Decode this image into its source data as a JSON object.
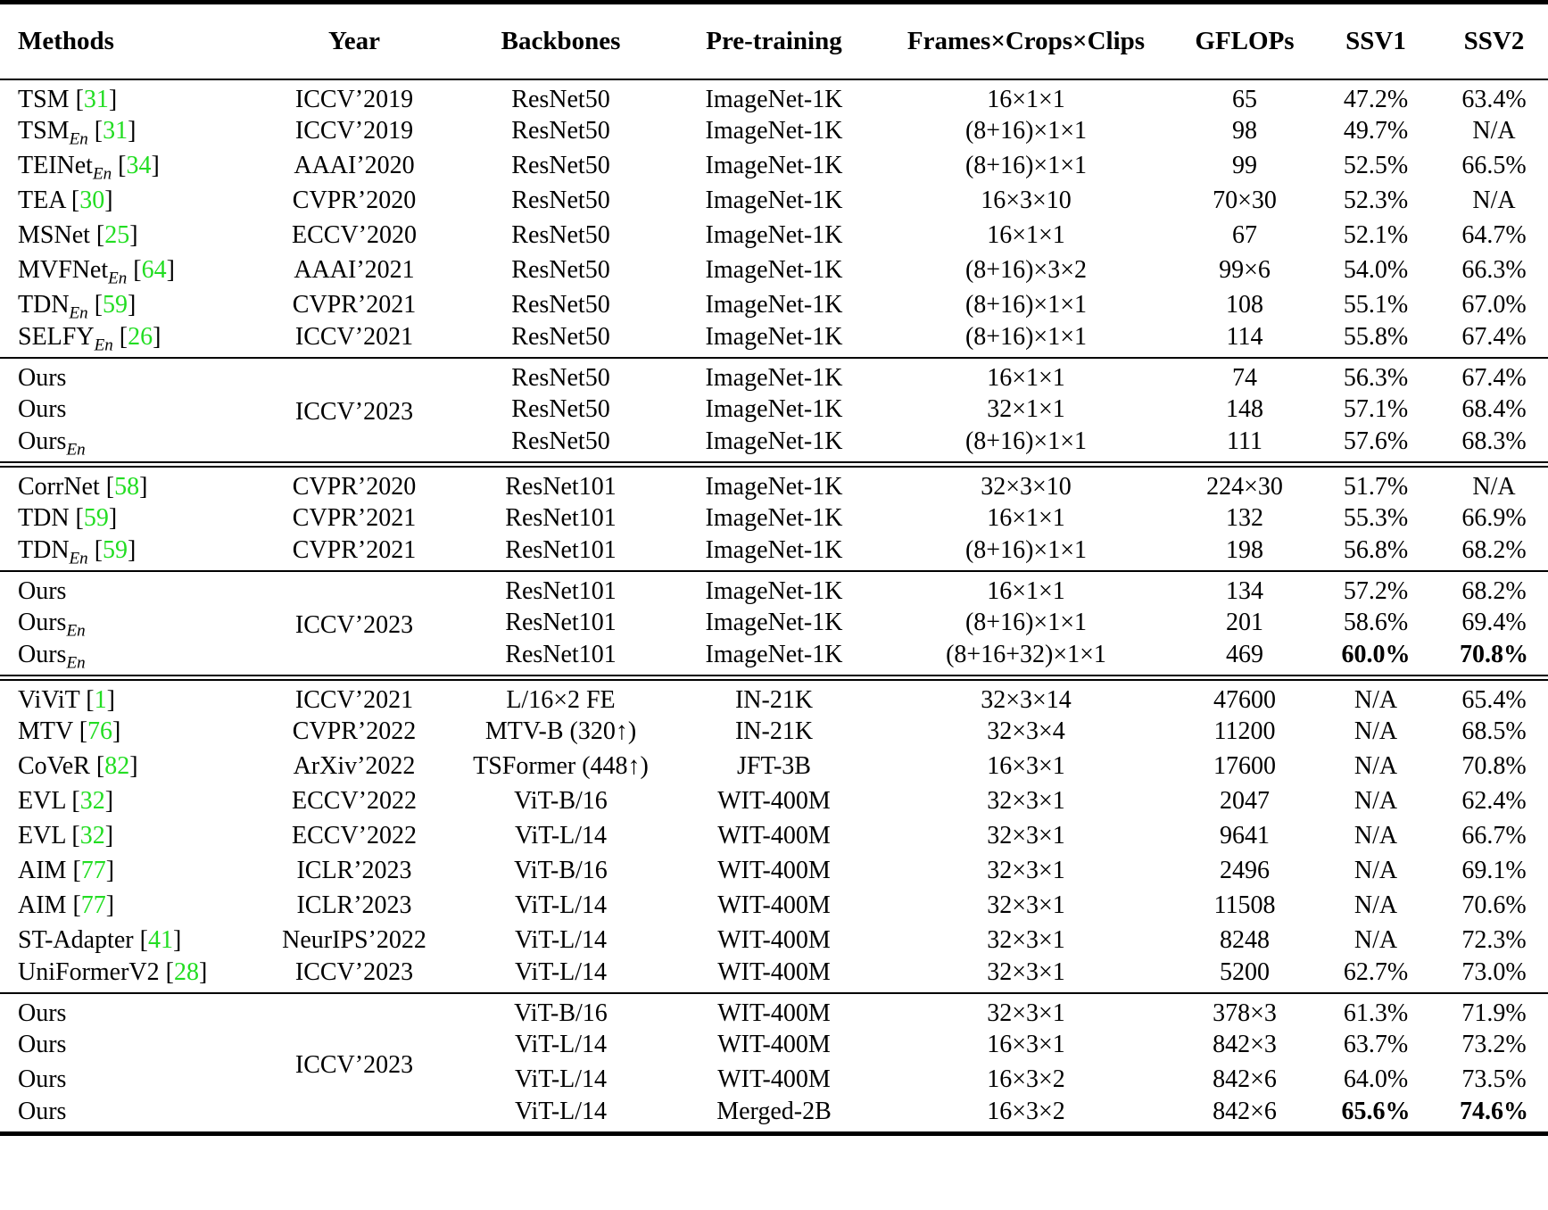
{
  "colors": {
    "citation_green": "#22dd22"
  },
  "table": {
    "columns": [
      {
        "label": "Methods"
      },
      {
        "label": "Year"
      },
      {
        "label": "Backbones"
      },
      {
        "label": "Pre-training"
      },
      {
        "label": "Frames×Crops×Clips"
      },
      {
        "label": "GFLOPs"
      },
      {
        "label": "SSV1"
      },
      {
        "label": "SSV2"
      }
    ],
    "sections": [
      {
        "rule_after": "single",
        "rows": [
          {
            "method": "TSM",
            "cite": "31",
            "year": "ICCV’2019",
            "backbone": "ResNet50",
            "pretraining": "ImageNet-1K",
            "frames": "16×1×1",
            "gflops": "65",
            "ssv1": "47.2%",
            "ssv2": "63.4%"
          },
          {
            "method": "TSM",
            "sub": "En",
            "cite": "31",
            "year": "ICCV’2019",
            "backbone": "ResNet50",
            "pretraining": "ImageNet-1K",
            "frames": "(8+16)×1×1",
            "gflops": "98",
            "ssv1": "49.7%",
            "ssv2": "N/A"
          },
          {
            "method": "TEINet",
            "sub": "En",
            "cite": "34",
            "year": "AAAI’2020",
            "backbone": "ResNet50",
            "pretraining": "ImageNet-1K",
            "frames": "(8+16)×1×1",
            "gflops": "99",
            "ssv1": "52.5%",
            "ssv2": "66.5%"
          },
          {
            "method": "TEA",
            "cite": "30",
            "year": "CVPR’2020",
            "backbone": "ResNet50",
            "pretraining": "ImageNet-1K",
            "frames": "16×3×10",
            "gflops": "70×30",
            "ssv1": "52.3%",
            "ssv2": "N/A"
          },
          {
            "method": "MSNet",
            "cite": "25",
            "year": "ECCV’2020",
            "backbone": "ResNet50",
            "pretraining": "ImageNet-1K",
            "frames": "16×1×1",
            "gflops": "67",
            "ssv1": "52.1%",
            "ssv2": "64.7%"
          },
          {
            "method": "MVFNet",
            "sub": "En",
            "cite": "64",
            "year": "AAAI’2021",
            "backbone": "ResNet50",
            "pretraining": "ImageNet-1K",
            "frames": "(8+16)×3×2",
            "gflops": "99×6",
            "ssv1": "54.0%",
            "ssv2": "66.3%"
          },
          {
            "method": "TDN",
            "sub": "En",
            "cite": "59",
            "year": "CVPR’2021",
            "backbone": "ResNet50",
            "pretraining": "ImageNet-1K",
            "frames": "(8+16)×1×1",
            "gflops": "108",
            "ssv1": "55.1%",
            "ssv2": "67.0%"
          },
          {
            "method": "SELFY",
            "sub": "En",
            "cite": "26",
            "year": "ICCV’2021",
            "backbone": "ResNet50",
            "pretraining": "ImageNet-1K",
            "frames": "(8+16)×1×1",
            "gflops": "114",
            "ssv1": "55.8%",
            "ssv2": "67.4%"
          }
        ]
      },
      {
        "rule_after": "double",
        "shared_year": "ICCV’2023",
        "rows": [
          {
            "method": "Ours",
            "backbone": "ResNet50",
            "pretraining": "ImageNet-1K",
            "frames": "16×1×1",
            "gflops": "74",
            "ssv1": "56.3%",
            "ssv2": "67.4%"
          },
          {
            "method": "Ours",
            "backbone": "ResNet50",
            "pretraining": "ImageNet-1K",
            "frames": "32×1×1",
            "gflops": "148",
            "ssv1": "57.1%",
            "ssv2": "68.4%"
          },
          {
            "method": "Ours",
            "sub": "En",
            "backbone": "ResNet50",
            "pretraining": "ImageNet-1K",
            "frames": "(8+16)×1×1",
            "gflops": "111",
            "ssv1": "57.6%",
            "ssv2": "68.3%"
          }
        ]
      },
      {
        "rule_after": "single",
        "rows": [
          {
            "method": "CorrNet",
            "cite": "58",
            "year": "CVPR’2020",
            "backbone": "ResNet101",
            "pretraining": "ImageNet-1K",
            "frames": "32×3×10",
            "gflops": "224×30",
            "ssv1": "51.7%",
            "ssv2": "N/A"
          },
          {
            "method": "TDN",
            "cite": "59",
            "year": "CVPR’2021",
            "backbone": "ResNet101",
            "pretraining": "ImageNet-1K",
            "frames": "16×1×1",
            "gflops": "132",
            "ssv1": "55.3%",
            "ssv2": "66.9%"
          },
          {
            "method": "TDN",
            "sub": "En",
            "cite": "59",
            "year": "CVPR’2021",
            "backbone": "ResNet101",
            "pretraining": "ImageNet-1K",
            "frames": "(8+16)×1×1",
            "gflops": "198",
            "ssv1": "56.8%",
            "ssv2": "68.2%"
          }
        ]
      },
      {
        "rule_after": "double",
        "shared_year": "ICCV’2023",
        "rows": [
          {
            "method": "Ours",
            "backbone": "ResNet101",
            "pretraining": "ImageNet-1K",
            "frames": "16×1×1",
            "gflops": "134",
            "ssv1": "57.2%",
            "ssv2": "68.2%"
          },
          {
            "method": "Ours",
            "sub": "En",
            "backbone": "ResNet101",
            "pretraining": "ImageNet-1K",
            "frames": "(8+16)×1×1",
            "gflops": "201",
            "ssv1": "58.6%",
            "ssv2": "69.4%"
          },
          {
            "method": "Ours",
            "sub": "En",
            "backbone": "ResNet101",
            "pretraining": "ImageNet-1K",
            "frames": "(8+16+32)×1×1",
            "gflops": "469",
            "ssv1": "60.0%",
            "ssv2": "70.8%",
            "bold": true
          }
        ]
      },
      {
        "rule_after": "single",
        "rows": [
          {
            "method": "ViViT",
            "cite": "1",
            "year": "ICCV’2021",
            "backbone": "L/16×2 FE",
            "pretraining": "IN-21K",
            "frames": "32×3×14",
            "gflops": "47600",
            "ssv1": "N/A",
            "ssv2": "65.4%"
          },
          {
            "method": "MTV",
            "cite": "76",
            "year": "CVPR’2022",
            "backbone": "MTV-B (320↑)",
            "pretraining": "IN-21K",
            "frames": "32×3×4",
            "gflops": "11200",
            "ssv1": "N/A",
            "ssv2": "68.5%"
          },
          {
            "method": "CoVeR",
            "cite": "82",
            "year": "ArXiv’2022",
            "backbone": "TSFormer (448↑)",
            "pretraining": "JFT-3B",
            "frames": "16×3×1",
            "gflops": "17600",
            "ssv1": "N/A",
            "ssv2": "70.8%"
          },
          {
            "method": "EVL",
            "cite": "32",
            "year": "ECCV’2022",
            "backbone": "ViT-B/16",
            "pretraining": "WIT-400M",
            "frames": "32×3×1",
            "gflops": "2047",
            "ssv1": "N/A",
            "ssv2": "62.4%"
          },
          {
            "method": "EVL",
            "cite": "32",
            "year": "ECCV’2022",
            "backbone": "ViT-L/14",
            "pretraining": "WIT-400M",
            "frames": "32×3×1",
            "gflops": "9641",
            "ssv1": "N/A",
            "ssv2": "66.7%"
          },
          {
            "method": "AIM",
            "cite": "77",
            "year": "ICLR’2023",
            "backbone": "ViT-B/16",
            "pretraining": "WIT-400M",
            "frames": "32×3×1",
            "gflops": "2496",
            "ssv1": "N/A",
            "ssv2": "69.1%"
          },
          {
            "method": "AIM",
            "cite": "77",
            "year": "ICLR’2023",
            "backbone": "ViT-L/14",
            "pretraining": "WIT-400M",
            "frames": "32×3×1",
            "gflops": "11508",
            "ssv1": "N/A",
            "ssv2": "70.6%"
          },
          {
            "method": "ST-Adapter",
            "cite": "41",
            "year": "NeurIPS’2022",
            "backbone": "ViT-L/14",
            "pretraining": "WIT-400M",
            "frames": "32×3×1",
            "gflops": "8248",
            "ssv1": "N/A",
            "ssv2": "72.3%"
          },
          {
            "method": "UniFormerV2",
            "cite": "28",
            "year": "ICCV’2023",
            "backbone": "ViT-L/14",
            "pretraining": "WIT-400M",
            "frames": "32×3×1",
            "gflops": "5200",
            "ssv1": "62.7%",
            "ssv2": "73.0%"
          }
        ]
      },
      {
        "rule_after": "none",
        "shared_year": "ICCV’2023",
        "rows": [
          {
            "method": "Ours",
            "backbone": "ViT-B/16",
            "pretraining": "WIT-400M",
            "frames": "32×3×1",
            "gflops": "378×3",
            "ssv1": "61.3%",
            "ssv2": "71.9%"
          },
          {
            "method": "Ours",
            "backbone": "ViT-L/14",
            "pretraining": "WIT-400M",
            "frames": "16×3×1",
            "gflops": "842×3",
            "ssv1": "63.7%",
            "ssv2": "73.2%"
          },
          {
            "method": "Ours",
            "backbone": "ViT-L/14",
            "pretraining": "WIT-400M",
            "frames": "16×3×2",
            "gflops": "842×6",
            "ssv1": "64.0%",
            "ssv2": "73.5%"
          },
          {
            "method": "Ours",
            "backbone": "ViT-L/14",
            "pretraining": "Merged-2B",
            "frames": "16×3×2",
            "gflops": "842×6",
            "ssv1": "65.6%",
            "ssv2": "74.6%",
            "bold": true
          }
        ]
      }
    ]
  }
}
